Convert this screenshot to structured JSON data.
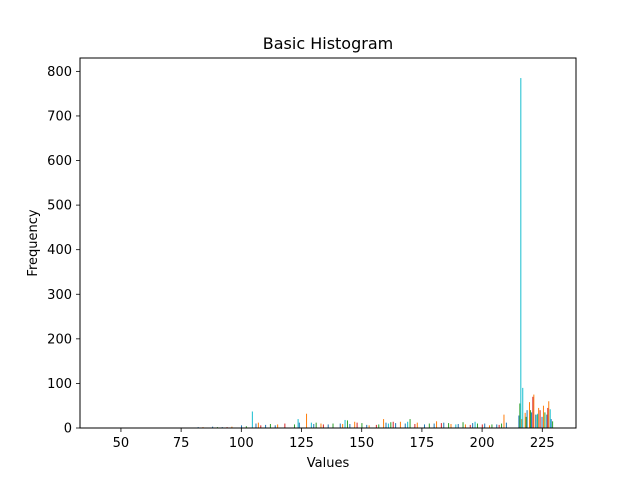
{
  "chart_data": {
    "type": "bar",
    "title": "Basic Histogram",
    "xlabel": "Values",
    "ylabel": "Frequency",
    "xlim": [
      33,
      239
    ],
    "ylim": [
      0,
      830
    ],
    "xticks": [
      50,
      75,
      100,
      125,
      150,
      175,
      200,
      225
    ],
    "yticks": [
      0,
      100,
      200,
      300,
      400,
      500,
      600,
      700,
      800
    ],
    "grid": false,
    "legend": "none",
    "colors": [
      "#1f77b4",
      "#ff7f0e",
      "#2ca02c",
      "#d62728",
      "#17becf",
      "#8c564b"
    ],
    "series": [
      {
        "color": "#1f77b4",
        "x": [
          67,
          82,
          88,
          92,
          100,
          106,
          110,
          114,
          124,
          130,
          136,
          141,
          145,
          152,
          160,
          164,
          168,
          176,
          180,
          184,
          190,
          196,
          201,
          206,
          210,
          215.2,
          218.6,
          220.4,
          222.2,
          224.8,
          226.8,
          228.6
        ],
        "values": [
          1,
          2,
          3,
          2,
          6,
          10,
          7,
          6,
          12,
          9,
          8,
          10,
          9,
          7,
          12,
          11,
          10,
          8,
          10,
          12,
          9,
          11,
          10,
          8,
          12,
          28,
          40,
          35,
          30,
          25,
          30,
          20
        ]
      },
      {
        "color": "#ff7f0e",
        "x": [
          70,
          84,
          96,
          107,
          115,
          127,
          133,
          142,
          147,
          153,
          159,
          166,
          173,
          181,
          187,
          193,
          203,
          209,
          216.4,
          217.8,
          219.6,
          221.4,
          223.4,
          225.4,
          227.6
        ],
        "values": [
          1,
          2,
          3,
          12,
          8,
          32,
          10,
          9,
          14,
          6,
          20,
          14,
          12,
          15,
          9,
          8,
          6,
          30,
          20,
          34,
          58,
          75,
          45,
          50,
          60
        ]
      },
      {
        "color": "#2ca02c",
        "x": [
          74,
          90,
          102,
          112,
          122,
          131,
          138,
          144,
          150,
          157,
          162,
          170,
          178,
          186,
          192,
          198,
          204,
          208,
          215.6,
          218.2,
          220.0,
          222.8,
          226.0,
          229.2
        ],
        "values": [
          1,
          2,
          4,
          9,
          8,
          12,
          10,
          17,
          11,
          8,
          13,
          20,
          10,
          11,
          13,
          10,
          8,
          10,
          55,
          25,
          40,
          30,
          35,
          15
        ]
      },
      {
        "color": "#d62728",
        "x": [
          78,
          94,
          108,
          118,
          134,
          148,
          156,
          163,
          172,
          183,
          195,
          200,
          207,
          221.0,
          224.0,
          227.2
        ],
        "values": [
          1,
          2,
          6,
          10,
          8,
          12,
          7,
          14,
          9,
          11,
          7,
          8,
          7,
          70,
          40,
          45
        ]
      },
      {
        "color": "#17becf",
        "x": [
          104.5,
          123.5,
          129,
          143,
          161,
          169,
          189,
          197,
          216.0,
          216.8,
          223.0,
          228.2
        ],
        "values": [
          37,
          20,
          12,
          18,
          10,
          14,
          8,
          14,
          785,
          90,
          32,
          42
        ]
      }
    ]
  }
}
